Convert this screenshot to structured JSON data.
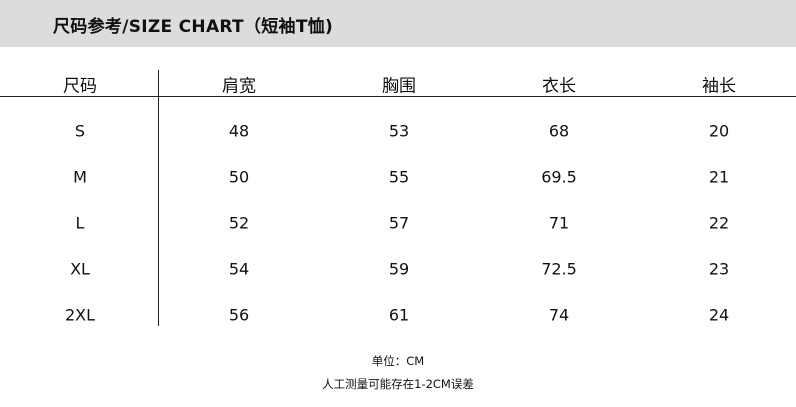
{
  "title": "尺码参考/SIZE CHART（短袖T恤)",
  "table": {
    "headers": [
      "尺码",
      "肩宽",
      "胸围",
      "衣长",
      "袖长"
    ],
    "rows": [
      [
        "S",
        "48",
        "53",
        "68",
        "20"
      ],
      [
        "M",
        "50",
        "55",
        "69.5",
        "21"
      ],
      [
        "L",
        "52",
        "57",
        "71",
        "22"
      ],
      [
        "XL",
        "54",
        "59",
        "72.5",
        "23"
      ],
      [
        "2XL",
        "56",
        "61",
        "74",
        "24"
      ]
    ]
  },
  "notes": {
    "unit": "单位：CM",
    "tolerance": "人工测量可能存在1-2CM误差"
  }
}
